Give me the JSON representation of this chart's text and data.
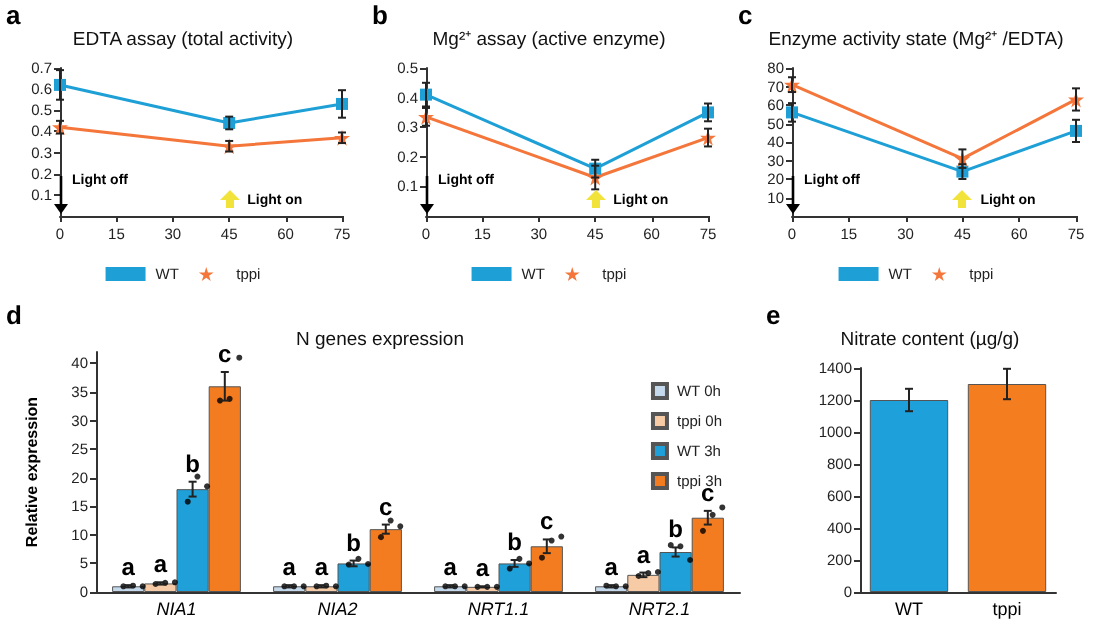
{
  "chart_data": [
    {
      "type": "line",
      "title": "EDTA assay (total activity)",
      "annotations": [
        "a",
        "Light off",
        "Light on"
      ],
      "x": [
        0,
        45,
        75
      ],
      "xlim": [
        0,
        75
      ],
      "xticks": [
        0,
        15,
        30,
        45,
        60,
        75
      ],
      "ylim": [
        0,
        0.7
      ],
      "yticks": [
        0.1,
        0.2,
        0.3,
        0.4,
        0.5,
        0.6,
        0.7
      ],
      "legend": "bottom",
      "series": [
        {
          "name": "WT",
          "color": "#1ea0d6",
          "marker": "square",
          "values": [
            0.62,
            0.44,
            0.53
          ],
          "errors": [
            0.07,
            0.03,
            0.065
          ]
        },
        {
          "name": "tppi",
          "color": "#f5763a",
          "marker": "star",
          "values": [
            0.42,
            0.33,
            0.37
          ],
          "errors": [
            0.03,
            0.025,
            0.025
          ]
        }
      ]
    },
    {
      "type": "line",
      "title": "Mg²⁺ assay (active enzyme)",
      "annotations": [
        "b",
        "Light off",
        "Light on"
      ],
      "x": [
        0,
        45,
        75
      ],
      "xlim": [
        0,
        75
      ],
      "xticks": [
        0,
        15,
        30,
        45,
        60,
        75
      ],
      "ylim": [
        0,
        0.5
      ],
      "yticks": [
        0.1,
        0.2,
        0.3,
        0.4,
        0.5
      ],
      "legend": "bottom",
      "series": [
        {
          "name": "WT",
          "color": "#1ea0d6",
          "marker": "square",
          "values": [
            0.41,
            0.16,
            0.35
          ],
          "errors": [
            0.04,
            0.03,
            0.03
          ]
        },
        {
          "name": "tppi",
          "color": "#f5763a",
          "marker": "star",
          "values": [
            0.335,
            0.13,
            0.265
          ],
          "errors": [
            0.03,
            0.04,
            0.03
          ]
        }
      ]
    },
    {
      "type": "line",
      "title": "Enzyme activity state (Mg²⁺ /EDTA)",
      "annotations": [
        "c",
        "Light off",
        "Light on"
      ],
      "x": [
        0,
        45,
        75
      ],
      "xlim": [
        0,
        75
      ],
      "xticks": [
        0,
        15,
        30,
        45,
        60,
        75
      ],
      "ylim": [
        0,
        80
      ],
      "yticks": [
        10,
        20,
        30,
        40,
        50,
        60,
        70,
        80
      ],
      "legend": "bottom",
      "series": [
        {
          "name": "WT",
          "color": "#1ea0d6",
          "marker": "square",
          "values": [
            56,
            24,
            46
          ],
          "errors": [
            5,
            4,
            6
          ]
        },
        {
          "name": "tppi",
          "color": "#f5763a",
          "marker": "star",
          "values": [
            71,
            31,
            63
          ],
          "errors": [
            4,
            5,
            6
          ]
        }
      ]
    },
    {
      "type": "bar",
      "title": "N genes expression",
      "ylabel": "Relative expression",
      "annotations": [
        "d"
      ],
      "categories": [
        "NIA1",
        "NIA2",
        "NRT1.1",
        "NRT2.1"
      ],
      "ylim": [
        0,
        42
      ],
      "yticks": [
        0,
        5,
        10,
        15,
        20,
        25,
        30,
        35,
        40
      ],
      "legend": "top right",
      "series": [
        {
          "name": "WT 0h",
          "color": "#c5d9ec",
          "values": [
            1,
            1,
            1,
            1
          ],
          "errors": [
            0.2,
            0.2,
            0.2,
            0.2
          ],
          "value_labels": [
            "a",
            "a",
            "a",
            "a"
          ]
        },
        {
          "name": "tppi 0h",
          "color": "#f7cba5",
          "values": [
            1.5,
            1,
            0.9,
            3
          ],
          "errors": [
            0.2,
            0.2,
            0.1,
            0.4
          ],
          "value_labels": [
            "a",
            "a",
            "a",
            "a"
          ]
        },
        {
          "name": "WT 3h",
          "color": "#1fa0d8",
          "values": [
            18,
            5,
            5,
            7
          ],
          "errors": [
            1.3,
            0.5,
            0.6,
            0.8
          ],
          "value_labels": [
            "b",
            "b",
            "b",
            "b"
          ]
        },
        {
          "name": "tppi 3h",
          "color": "#f47c20",
          "values": [
            36,
            11,
            8,
            13
          ],
          "errors": [
            2.5,
            0.8,
            1.2,
            1.2
          ],
          "value_labels": [
            "c",
            "c",
            "c",
            "c"
          ]
        },
        {
          "type": "scatter",
          "color": "#000000",
          "x": [
            "NIA1",
            "NIA1",
            "NIA1",
            "NIA2",
            "NIA2",
            "NIA2",
            "NRT1.1",
            "NRT1.1",
            "NRT1.1",
            "NRT2.1",
            "NRT2.1",
            "NRT2.1"
          ],
          "values": [
            1,
            1.1,
            1,
            1,
            1,
            1,
            1,
            1,
            1,
            1.1,
            1,
            1
          ]
        },
        {
          "type": "scatter",
          "color": "#000000",
          "x": [
            "NIA1",
            "NIA1",
            "NIA1",
            "NIA2",
            "NIA2",
            "NIA2",
            "NRT1.1",
            "NRT1.1",
            "NRT1.1",
            "NRT2.1",
            "NRT2.1",
            "NRT2.1"
          ],
          "values": [
            1.4,
            1.6,
            1.7,
            1,
            1.1,
            1,
            0.9,
            0.9,
            0.9,
            2.8,
            3.3,
            3.5
          ]
        },
        {
          "type": "scatter",
          "color": "#000000",
          "x": [
            "NIA1",
            "NIA1",
            "NIA1",
            "NIA2",
            "NIA2",
            "NIA2",
            "NRT1.1",
            "NRT1.1",
            "NRT1.1",
            "NRT2.1",
            "NRT2.1",
            "NRT2.1"
          ],
          "values": [
            15.8,
            20.2,
            18.5,
            4.8,
            5.8,
            4.9,
            4.1,
            5.8,
            5,
            8.2,
            8,
            5.6
          ]
        },
        {
          "type": "scatter",
          "color": "#000000",
          "x": [
            "NIA1",
            "NIA1",
            "NIA1",
            "NIA2",
            "NIA2",
            "NIA2",
            "NRT1.1",
            "NRT1.1",
            "NRT1.1",
            "NRT2.1",
            "NRT2.1",
            "NRT2.1"
          ],
          "values": [
            33.5,
            33.8,
            41,
            9.6,
            12.5,
            11.5,
            6,
            9,
            9.7,
            10.7,
            13.5,
            14.8
          ]
        }
      ]
    },
    {
      "type": "bar",
      "title": "Nitrate content (µg/g)",
      "annotations": [
        "e"
      ],
      "categories": [
        "WT",
        "tppi"
      ],
      "ylim": [
        0,
        1400
      ],
      "yticks": [
        0,
        200,
        400,
        600,
        800,
        1000,
        1200,
        1400
      ],
      "series": [
        {
          "colors": [
            "#1ea0da",
            "#f47d20"
          ],
          "values": [
            1200,
            1300
          ],
          "errors": [
            70,
            95
          ]
        }
      ]
    }
  ]
}
